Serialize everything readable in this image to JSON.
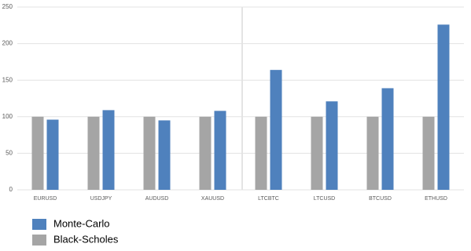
{
  "chart_data": {
    "type": "bar",
    "categories": [
      "EURUSD",
      "USDJPY",
      "AUDUSD",
      "XAUUSD",
      "LTCBTC",
      "LTCUSD",
      "BTCUSD",
      "ETHUSD"
    ],
    "series": [
      {
        "name": "Monte-Carlo",
        "color": "#4f81bd",
        "values": [
          96,
          109,
          95,
          108,
          164,
          121,
          139,
          226
        ]
      },
      {
        "name": "Black-Scholes",
        "color": "#a5a5a5",
        "values": [
          100,
          100,
          100,
          100,
          100,
          100,
          100,
          100
        ]
      }
    ],
    "ylim": [
      0,
      250
    ],
    "yticks": [
      0,
      50,
      100,
      150,
      200,
      250
    ],
    "grid": true
  }
}
